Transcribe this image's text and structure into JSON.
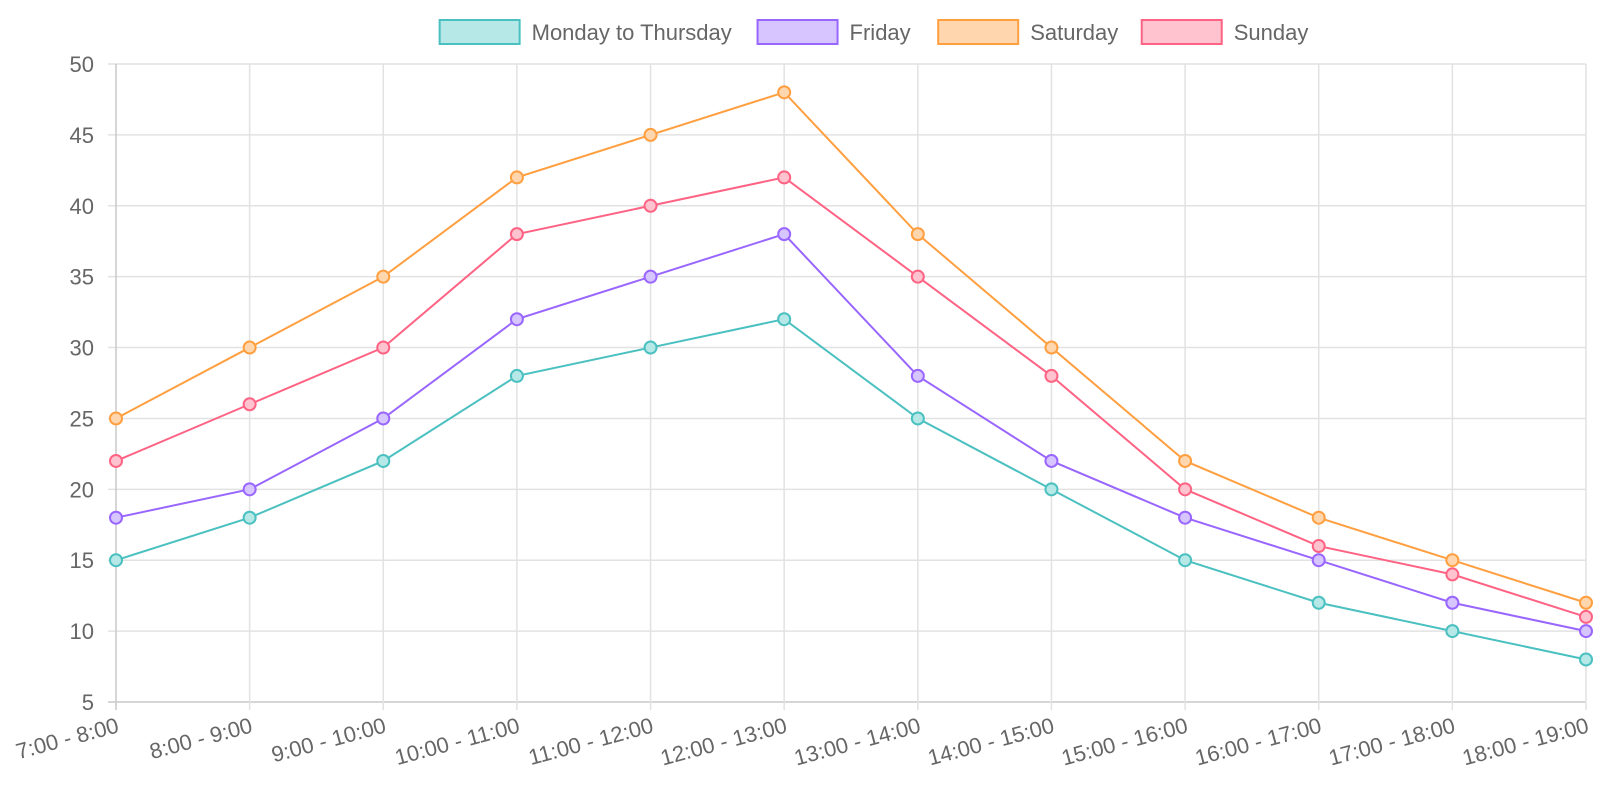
{
  "chart_data": {
    "type": "line",
    "categories": [
      "7:00 - 8:00",
      "8:00 - 9:00",
      "9:00 - 10:00",
      "10:00 - 11:00",
      "11:00 - 12:00",
      "12:00 - 13:00",
      "13:00 - 14:00",
      "14:00 - 15:00",
      "15:00 - 16:00",
      "16:00 - 17:00",
      "17:00 - 18:00",
      "18:00 - 19:00"
    ],
    "series": [
      {
        "name": "Monday to Thursday",
        "color": "#4bc0c0",
        "fill": "#b5e8e6",
        "values": [
          15,
          18,
          22,
          28,
          30,
          32,
          25,
          20,
          15,
          12,
          10,
          8
        ]
      },
      {
        "name": "Friday",
        "color": "#9966ff",
        "fill": "#d6c5ff",
        "values": [
          18,
          20,
          25,
          32,
          35,
          38,
          28,
          22,
          18,
          15,
          12,
          10
        ]
      },
      {
        "name": "Saturday",
        "color": "#ff9f40",
        "fill": "#ffd6ae",
        "values": [
          25,
          30,
          35,
          42,
          45,
          48,
          38,
          30,
          22,
          18,
          15,
          12
        ]
      },
      {
        "name": "Sunday",
        "color": "#ff6384",
        "fill": "#ffc3cf",
        "values": [
          22,
          26,
          30,
          38,
          40,
          42,
          35,
          28,
          20,
          16,
          14,
          11
        ]
      }
    ],
    "ylim": [
      5,
      50
    ],
    "yticks": [
      5,
      10,
      15,
      20,
      25,
      30,
      35,
      40,
      45,
      50
    ],
    "title": "",
    "xlabel": "",
    "ylabel": "",
    "grid": true,
    "legend": "top-center"
  }
}
